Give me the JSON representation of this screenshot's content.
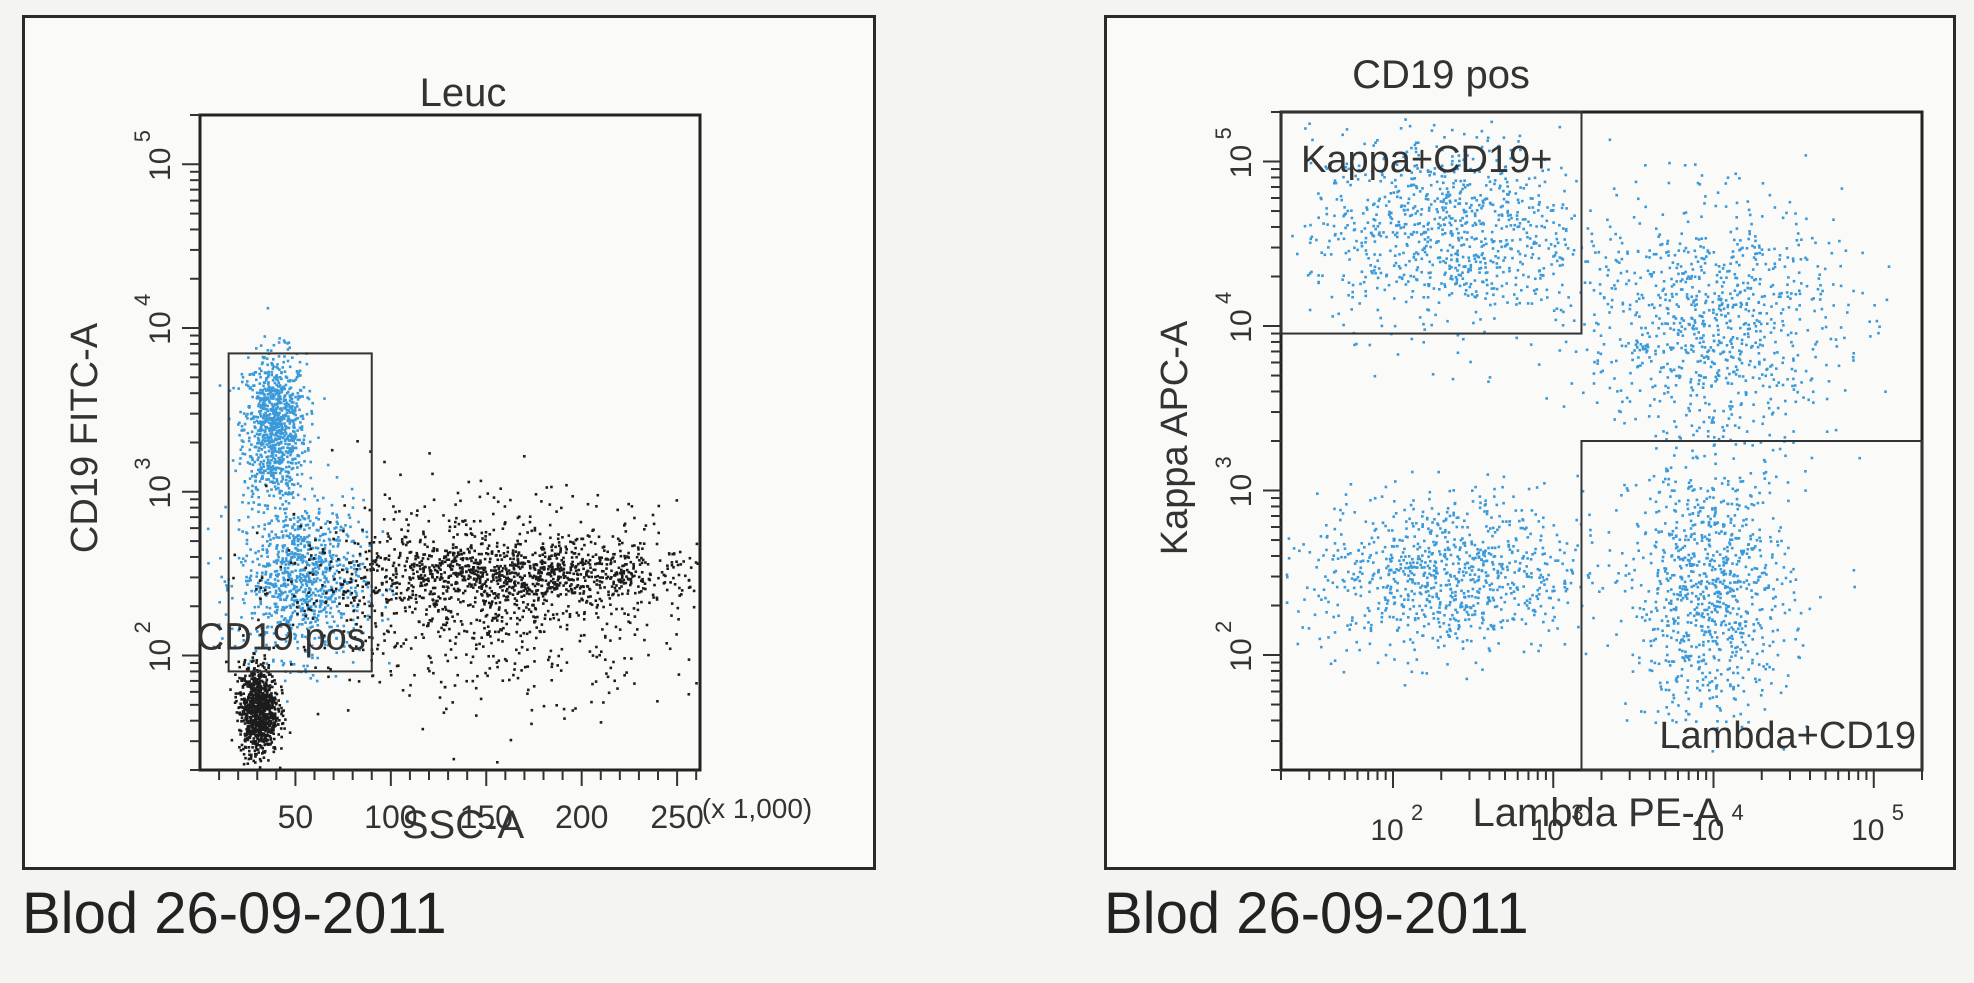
{
  "colors": {
    "gated": "#3a9ad9",
    "ungated": "#1c1c1c",
    "axis": "#333333"
  },
  "chart_data": [
    {
      "type": "scatter",
      "title": "Leuc",
      "xlabel": "SSC-A",
      "ylabel": "CD19 FITC-A",
      "x_scale": "linear",
      "y_scale": "log",
      "x_unit_note": "(x 1,000)",
      "xlim": [
        0,
        262
      ],
      "ylim": [
        20,
        200000
      ],
      "x_ticks": [
        "50",
        "100",
        "150",
        "200",
        "250"
      ],
      "y_ticks": [
        {
          "base": "10",
          "exp": "2"
        },
        {
          "base": "10",
          "exp": "3"
        },
        {
          "base": "10",
          "exp": "4"
        },
        {
          "base": "10",
          "exp": "5"
        }
      ],
      "gates": [
        {
          "label": "CD19 pos",
          "x_range": [
            15,
            90
          ],
          "y_range": [
            80,
            7000
          ]
        }
      ],
      "series": [
        {
          "name": "CD19 pos",
          "color": "#3a9ad9",
          "clusters": [
            {
              "x": [
                22,
                55
              ],
              "y": [
                900,
                7000
              ]
            },
            {
              "x": [
                20,
                85
              ],
              "y": [
                100,
                900
              ]
            }
          ]
        },
        {
          "name": "",
          "color": "#1c1c1c",
          "clusters": [
            {
              "x": [
                20,
                40
              ],
              "y": [
                25,
                90
              ]
            },
            {
              "x": [
                70,
                262
              ],
              "y": [
                200,
                500
              ]
            },
            {
              "x": [
                40,
                262
              ],
              "y": [
                60,
                1000
              ]
            }
          ]
        }
      ],
      "grid": false,
      "caption": "Blod 26-09-2011"
    },
    {
      "type": "scatter",
      "title": "CD19 pos",
      "xlabel": "Lambda PE-A",
      "ylabel": "Kappa APC-A",
      "x_scale": "log",
      "y_scale": "log",
      "xlim": [
        20,
        200000
      ],
      "ylim": [
        20,
        200000
      ],
      "x_ticks": [
        {
          "base": "10",
          "exp": "2"
        },
        {
          "base": "10",
          "exp": "3"
        },
        {
          "base": "10",
          "exp": "4"
        },
        {
          "base": "10",
          "exp": "5"
        }
      ],
      "y_ticks": [
        {
          "base": "10",
          "exp": "2"
        },
        {
          "base": "10",
          "exp": "3"
        },
        {
          "base": "10",
          "exp": "4"
        },
        {
          "base": "10",
          "exp": "5"
        }
      ],
      "gates": [
        {
          "label": "Kappa+CD19+",
          "x_range": [
            20,
            1500
          ],
          "y_range": [
            9000,
            200000
          ]
        },
        {
          "label": "Lambda+CD19",
          "x_range": [
            1500,
            200000
          ],
          "y_range": [
            20,
            2000
          ]
        }
      ],
      "series": [
        {
          "name": "CD19 pos",
          "color": "#3a9ad9",
          "clusters": [
            {
              "x": [
                3000,
                30000
              ],
              "y": [
                40,
                1500
              ]
            },
            {
              "x": [
                1500,
                60000
              ],
              "y": [
                2000,
                60000
              ]
            },
            {
              "x": [
                30,
                1500
              ],
              "y": [
                100,
                1000
              ]
            },
            {
              "x": [
                30,
                1500
              ],
              "y": [
                10000,
                150000
              ]
            }
          ]
        }
      ],
      "grid": false,
      "caption": "Blod 26-09-2011"
    }
  ]
}
